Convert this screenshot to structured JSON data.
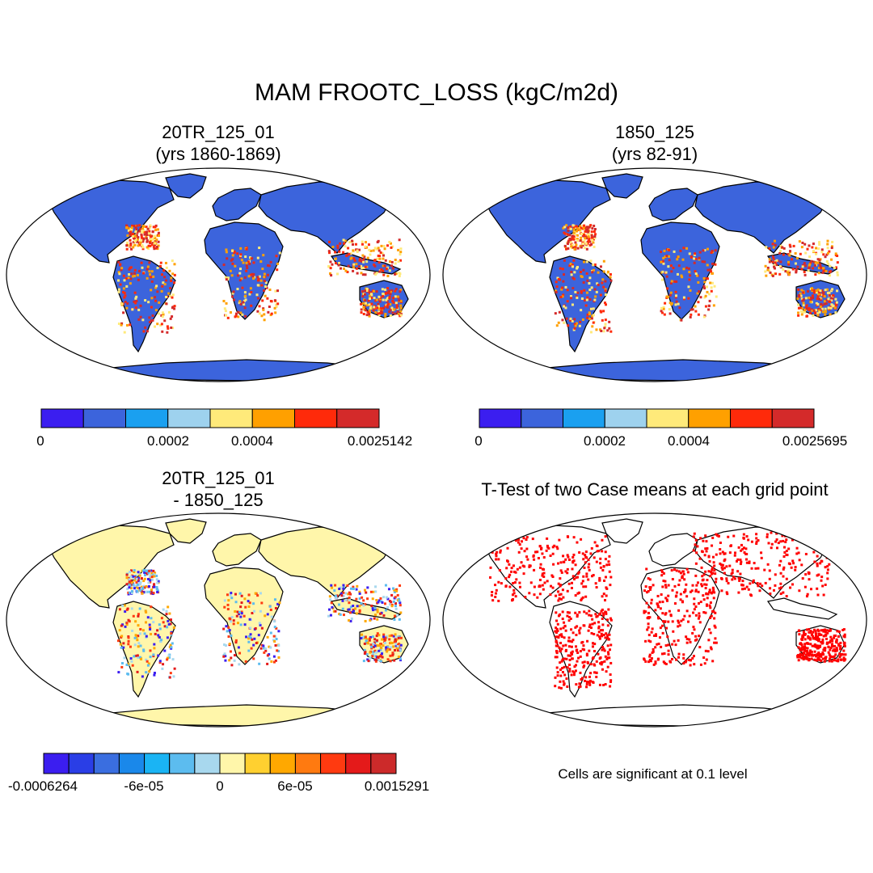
{
  "title": "MAM FROOTC_LOSS (kgC/m2d)",
  "panels": [
    {
      "title1": "20TR_125_01",
      "title2": "(yrs 1860-1869)"
    },
    {
      "title1": "1850_125",
      "title2": "(yrs 82-91)"
    },
    {
      "title1": "20TR_125_01",
      "title2": "- 1850_125"
    },
    {
      "title1": "T-Test of two Case means at each grid point",
      "title2": ""
    }
  ],
  "colorbars": [
    {
      "colors": [
        "#3b1ef0",
        "#3c64dc",
        "#1aa0f0",
        "#9ed2ee",
        "#ffea7a",
        "#ffa000",
        "#ff2a0a",
        "#d42a2a"
      ],
      "labels": [
        "0",
        "0.0002",
        "0.0004",
        "0.0025142"
      ]
    },
    {
      "colors": [
        "#3b1ef0",
        "#3c64dc",
        "#1aa0f0",
        "#9ed2ee",
        "#ffea7a",
        "#ffa000",
        "#ff2a0a",
        "#d42a2a"
      ],
      "labels": [
        "0",
        "0.0002",
        "0.0004",
        "0.0025695"
      ]
    },
    {
      "colors": [
        "#3b1ef0",
        "#2a3ee6",
        "#3a6ee0",
        "#1a88ea",
        "#1ab4f4",
        "#5cbcef",
        "#a8d8ee",
        "#fff6aa",
        "#ffd030",
        "#ffa800",
        "#ff7a10",
        "#ff3a10",
        "#e41a1a",
        "#cc2a2a"
      ],
      "labels": [
        "-0.0006264",
        "-6e-05",
        "0",
        "6e-05",
        "0.0015291"
      ]
    }
  ],
  "significance_note": "Cells are significant at 0.1 level",
  "map_colors": {
    "ocean": "#ffffff",
    "land_low": "#3c64dc",
    "land_high": "#ff2a0a",
    "diff_land": "#fff6aa",
    "sig_cells": "#ff0000"
  }
}
